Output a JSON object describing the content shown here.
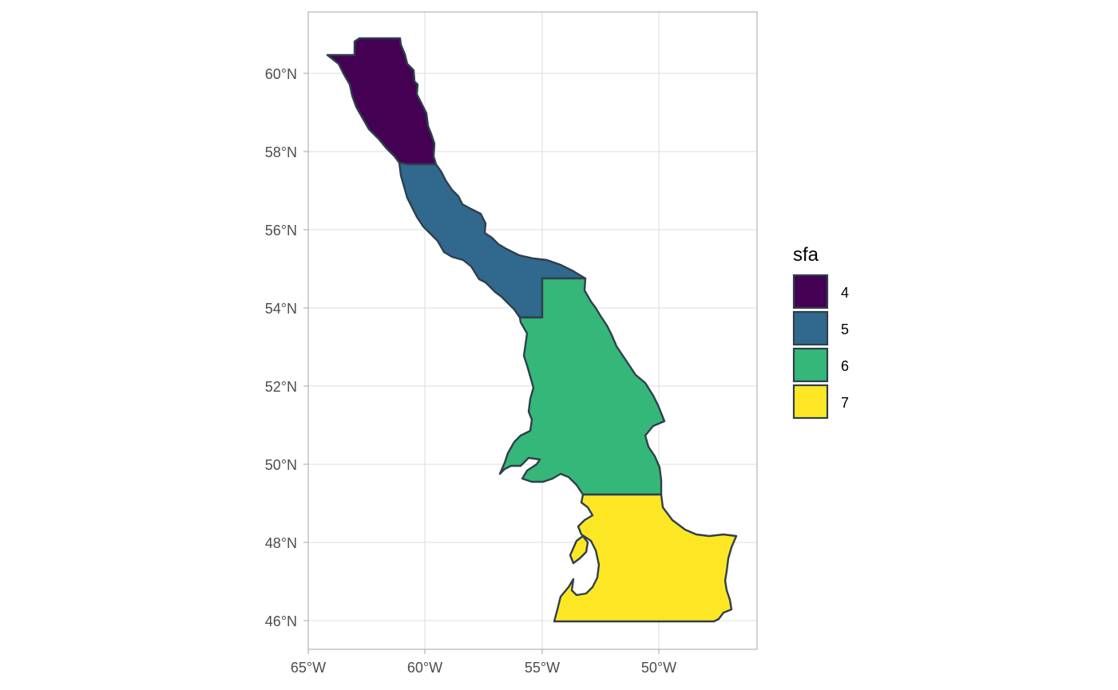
{
  "map": {
    "x_axis": {
      "ticks": [
        "65°W",
        "60°W",
        "55°W",
        "50°W"
      ]
    },
    "y_axis": {
      "ticks": [
        "60°N",
        "58°N",
        "56°N",
        "54°N",
        "52°N",
        "50°N",
        "48°N",
        "46°N"
      ]
    },
    "regions": [
      {
        "sfa": "4",
        "color": "#440154"
      },
      {
        "sfa": "5",
        "color": "#31688e"
      },
      {
        "sfa": "6",
        "color": "#35b779"
      },
      {
        "sfa": "7",
        "color": "#fde725"
      }
    ]
  },
  "legend": {
    "title": "sfa",
    "items": [
      {
        "label": "4",
        "color": "#440154"
      },
      {
        "label": "5",
        "color": "#31688e"
      },
      {
        "label": "6",
        "color": "#35b779"
      },
      {
        "label": "7",
        "color": "#fde725"
      }
    ],
    "position": "right"
  }
}
